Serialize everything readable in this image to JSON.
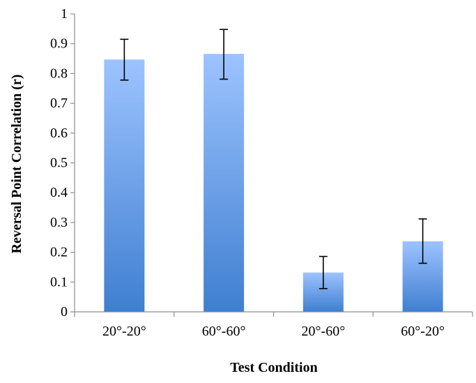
{
  "chart_data": {
    "type": "bar",
    "title": "",
    "xlabel": "Test Condition",
    "ylabel": "Reversal Point Correlation (r)",
    "categories": [
      "20°-20°",
      "60°-60°",
      "20°-60°",
      "60°-20°"
    ],
    "values": [
      0.847,
      0.866,
      0.132,
      0.237
    ],
    "error_low": [
      0.778,
      0.781,
      0.078,
      0.163
    ],
    "error_high": [
      0.915,
      0.948,
      0.186,
      0.312
    ],
    "ylim": [
      0,
      1
    ],
    "yticks": [
      0,
      0.1,
      0.2,
      0.3,
      0.4,
      0.5,
      0.6,
      0.7,
      0.8,
      0.9,
      1
    ],
    "ytick_labels": [
      "0",
      "0.1",
      "0.2",
      "0.3",
      "0.4",
      "0.5",
      "0.6",
      "0.7",
      "0.8",
      "0.9",
      "1"
    ],
    "grid": false,
    "legend": "none",
    "colors": {
      "bar_top": "#9DC3FF",
      "bar_bottom": "#3F7FD0",
      "axis": "#8C8C8C",
      "error_bar": "#000000"
    }
  }
}
